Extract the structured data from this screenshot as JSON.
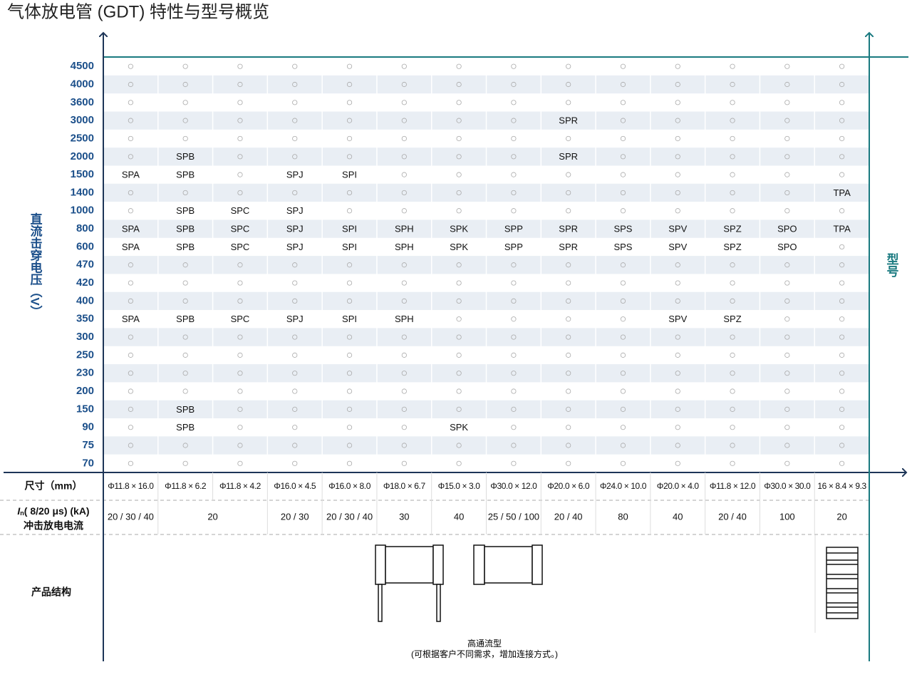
{
  "title": "气体放电管 (GDT) 特性与型号概览",
  "y_label": "直流击穿电压（V）",
  "right_label": "型号",
  "rows": [
    {
      "voltage": "4500",
      "models": [
        null,
        null,
        null,
        null,
        null,
        null,
        null,
        null,
        null,
        null,
        null,
        null,
        null,
        null
      ]
    },
    {
      "voltage": "4000",
      "models": [
        null,
        null,
        null,
        null,
        null,
        null,
        null,
        null,
        null,
        null,
        null,
        null,
        null,
        null
      ]
    },
    {
      "voltage": "3600",
      "models": [
        null,
        null,
        null,
        null,
        null,
        null,
        null,
        null,
        null,
        null,
        null,
        null,
        null,
        null
      ]
    },
    {
      "voltage": "3000",
      "models": [
        null,
        null,
        null,
        null,
        null,
        null,
        null,
        null,
        "SPR",
        null,
        null,
        null,
        null,
        null
      ]
    },
    {
      "voltage": "2500",
      "models": [
        null,
        null,
        null,
        null,
        null,
        null,
        null,
        null,
        null,
        null,
        null,
        null,
        null,
        null
      ]
    },
    {
      "voltage": "2000",
      "models": [
        null,
        "SPB",
        null,
        null,
        null,
        null,
        null,
        null,
        "SPR",
        null,
        null,
        null,
        null,
        null
      ]
    },
    {
      "voltage": "1500",
      "models": [
        "SPA",
        "SPB",
        null,
        "SPJ",
        "SPI",
        null,
        null,
        null,
        null,
        null,
        null,
        null,
        null,
        null
      ]
    },
    {
      "voltage": "1400",
      "models": [
        null,
        null,
        null,
        null,
        null,
        null,
        null,
        null,
        null,
        null,
        null,
        null,
        null,
        "TPA"
      ]
    },
    {
      "voltage": "1000",
      "models": [
        null,
        "SPB",
        "SPC",
        "SPJ",
        null,
        null,
        null,
        null,
        null,
        null,
        null,
        null,
        null,
        null
      ]
    },
    {
      "voltage": "800",
      "models": [
        "SPA",
        "SPB",
        "SPC",
        "SPJ",
        "SPI",
        "SPH",
        "SPK",
        "SPP",
        "SPR",
        "SPS",
        "SPV",
        "SPZ",
        "SPO",
        "TPA"
      ]
    },
    {
      "voltage": "600",
      "models": [
        "SPA",
        "SPB",
        "SPC",
        "SPJ",
        "SPI",
        "SPH",
        "SPK",
        "SPP",
        "SPR",
        "SPS",
        "SPV",
        "SPZ",
        "SPO",
        null
      ]
    },
    {
      "voltage": "470",
      "models": [
        null,
        null,
        null,
        null,
        null,
        null,
        null,
        null,
        null,
        null,
        null,
        null,
        null,
        null
      ]
    },
    {
      "voltage": "420",
      "models": [
        null,
        null,
        null,
        null,
        null,
        null,
        null,
        null,
        null,
        null,
        null,
        null,
        null,
        null
      ]
    },
    {
      "voltage": "400",
      "models": [
        null,
        null,
        null,
        null,
        null,
        null,
        null,
        null,
        null,
        null,
        null,
        null,
        null,
        null
      ]
    },
    {
      "voltage": "350",
      "models": [
        "SPA",
        "SPB",
        "SPC",
        "SPJ",
        "SPI",
        "SPH",
        null,
        null,
        null,
        null,
        "SPV",
        "SPZ",
        null,
        null
      ]
    },
    {
      "voltage": "300",
      "models": [
        null,
        null,
        null,
        null,
        null,
        null,
        null,
        null,
        null,
        null,
        null,
        null,
        null,
        null
      ]
    },
    {
      "voltage": "250",
      "models": [
        null,
        null,
        null,
        null,
        null,
        null,
        null,
        null,
        null,
        null,
        null,
        null,
        null,
        null
      ]
    },
    {
      "voltage": "230",
      "models": [
        null,
        null,
        null,
        null,
        null,
        null,
        null,
        null,
        null,
        null,
        null,
        null,
        null,
        null
      ]
    },
    {
      "voltage": "200",
      "models": [
        null,
        null,
        null,
        null,
        null,
        null,
        null,
        null,
        null,
        null,
        null,
        null,
        null,
        null
      ]
    },
    {
      "voltage": "150",
      "models": [
        null,
        "SPB",
        null,
        null,
        null,
        null,
        null,
        null,
        null,
        null,
        null,
        null,
        null,
        null
      ]
    },
    {
      "voltage": "90",
      "models": [
        null,
        "SPB",
        null,
        null,
        null,
        null,
        "SPK",
        null,
        null,
        null,
        null,
        null,
        null,
        null
      ]
    },
    {
      "voltage": "75",
      "models": [
        null,
        null,
        null,
        null,
        null,
        null,
        null,
        null,
        null,
        null,
        null,
        null,
        null,
        null
      ]
    },
    {
      "voltage": "70",
      "models": [
        null,
        null,
        null,
        null,
        null,
        null,
        null,
        null,
        null,
        null,
        null,
        null,
        null,
        null
      ]
    }
  ],
  "size_label": "尺寸（mm）",
  "sizes": [
    "Φ11.8 × 16.0",
    "Φ11.8 × 6.2",
    "Φ11.8 × 4.2",
    "Φ16.0 × 4.5",
    "Φ16.0 × 8.0",
    "Φ18.0 × 6.7",
    "Φ15.0 × 3.0",
    "Φ30.0 × 12.0",
    "Φ20.0 × 6.0",
    "Φ24.0 × 10.0",
    "Φ20.0 × 4.0",
    "Φ11.8 × 12.0",
    "Φ30.0 × 30.0",
    "16 × 8.4 × 9.3"
  ],
  "current_label": {
    "symbol": "I",
    "subscript": "n",
    "text": "( 8/20 μs) (kA)",
    "name": "冲击放电电流"
  },
  "currents": [
    "20 / 30 / 40",
    "20",
    null,
    "20 / 30",
    "20 / 30 / 40",
    "30",
    "40",
    "25 / 50 / 100",
    "20 / 40",
    "80",
    "40",
    "20 / 40",
    "100",
    "20"
  ],
  "structure_label": "产品结构",
  "structure_note": {
    "title": "高通流型",
    "text": "(可根据客户不同需求，增加连接方式。)"
  }
}
